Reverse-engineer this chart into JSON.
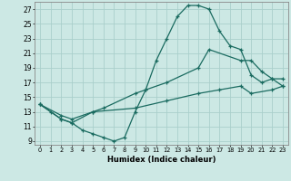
{
  "xlabel": "Humidex (Indice chaleur)",
  "bg_color": "#cce8e4",
  "grid_color": "#aacfcb",
  "line_color": "#1a6b60",
  "xlim": [
    -0.5,
    23.5
  ],
  "ylim": [
    8.5,
    28.0
  ],
  "xticks": [
    0,
    1,
    2,
    3,
    4,
    5,
    6,
    7,
    8,
    9,
    10,
    11,
    12,
    13,
    14,
    15,
    16,
    17,
    18,
    19,
    20,
    21,
    22,
    23
  ],
  "yticks": [
    9,
    11,
    13,
    15,
    17,
    19,
    21,
    23,
    25,
    27
  ],
  "curve1_x": [
    0,
    1,
    2,
    3,
    4,
    5,
    6,
    7,
    8,
    9,
    10,
    11,
    12,
    13,
    14,
    15,
    16,
    17,
    18,
    19,
    20,
    21,
    22,
    23
  ],
  "curve1_y": [
    14,
    13,
    12,
    11.5,
    10.5,
    10,
    9.5,
    9,
    9.5,
    13,
    16,
    20,
    23,
    26,
    27.5,
    27.5,
    27,
    24,
    22,
    21.5,
    18,
    17,
    17.5,
    16.5
  ],
  "curve2_x": [
    0,
    2,
    3,
    5,
    6,
    9,
    10,
    12,
    15,
    16,
    19,
    20,
    21,
    22,
    23
  ],
  "curve2_y": [
    14,
    12,
    11.5,
    13,
    13.5,
    15.5,
    16,
    17,
    19,
    21.5,
    20,
    20,
    18.5,
    17.5,
    17.5
  ],
  "curve3_x": [
    0,
    2,
    3,
    5,
    9,
    12,
    15,
    17,
    19,
    20,
    22,
    23
  ],
  "curve3_y": [
    14,
    12.5,
    12,
    13,
    13.5,
    14.5,
    15.5,
    16,
    16.5,
    15.5,
    16,
    16.5
  ]
}
